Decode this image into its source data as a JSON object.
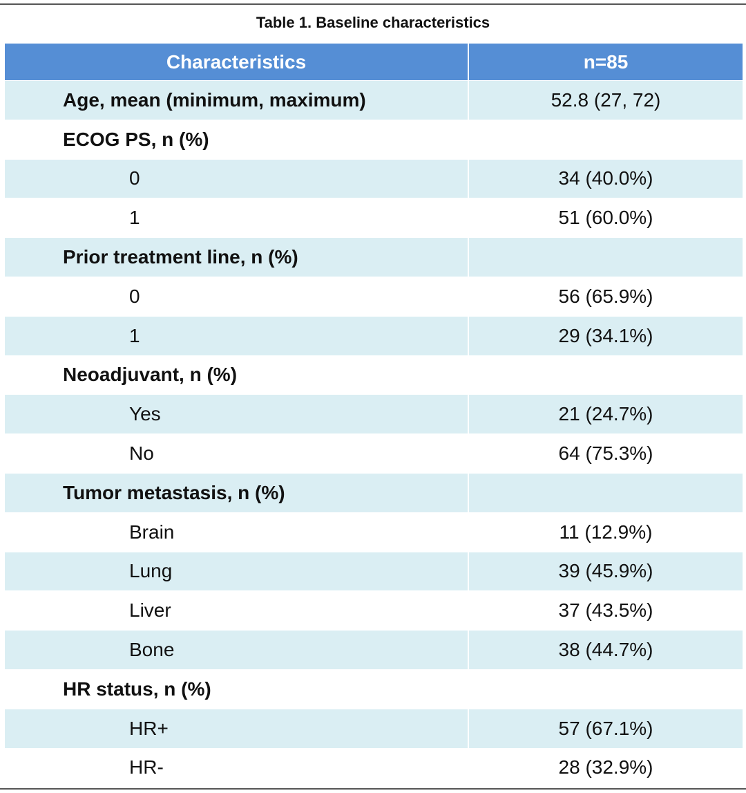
{
  "table": {
    "title": "Table 1. Baseline characteristics",
    "header": [
      "Characteristics",
      "n=85"
    ],
    "sections": [
      {
        "label": "Age, mean (minimum, maximum)",
        "value": "52.8 (27, 72)"
      },
      {
        "label": "ECOG PS, n (%)",
        "items": [
          [
            "0",
            "34 (40.0%)"
          ],
          [
            "1",
            "51 (60.0%)"
          ]
        ]
      },
      {
        "label": "Prior treatment line, n (%)",
        "items": [
          [
            "0",
            "56 (65.9%)"
          ],
          [
            "1",
            "29 (34.1%)"
          ]
        ]
      },
      {
        "label": "Neoadjuvant, n (%)",
        "items": [
          [
            "Yes",
            "21 (24.7%)"
          ],
          [
            "No",
            "64 (75.3%)"
          ]
        ]
      },
      {
        "label": "Tumor metastasis, n (%)",
        "items": [
          [
            "Brain",
            "11 (12.9%)"
          ],
          [
            "Lung",
            "39 (45.9%)"
          ],
          [
            "Liver",
            "37 (43.5%)"
          ],
          [
            "Bone",
            "38 (44.7%)"
          ]
        ]
      },
      {
        "label": "HR status, n (%)",
        "items": [
          [
            "HR+",
            "57 (67.1%)"
          ],
          [
            "HR-",
            "28 (32.9%)"
          ]
        ]
      }
    ]
  }
}
